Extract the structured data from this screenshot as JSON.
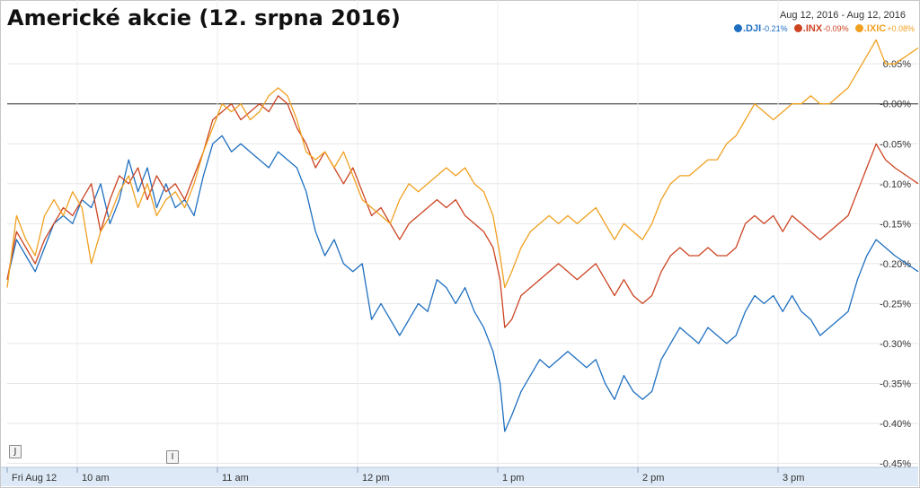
{
  "title": "Americké akcie (12. srpna 2016)",
  "date_range": "Aug 12, 2016  -  Aug 12, 2016",
  "legend": [
    {
      "name": ".DJI",
      "change": "-0.21%",
      "color": "#1e6fc0"
    },
    {
      "name": ".INX",
      "change": "-0.09%",
      "color": "#cc4422"
    },
    {
      "name": ".IXIC",
      "change": "+0.08%",
      "color": "#f0a020"
    }
  ],
  "markers": [
    {
      "label": "J"
    },
    {
      "label": "I"
    }
  ],
  "chart_data": {
    "type": "line",
    "x_ticks": [
      "Fri Aug 12",
      "10 am",
      "11 am",
      "12 pm",
      "1 pm",
      "2 pm",
      "3 pm"
    ],
    "x_tick_minutes": [
      0,
      30,
      90,
      150,
      210,
      270,
      330
    ],
    "x_range_minutes": [
      0,
      390
    ],
    "y_ticks": [
      0.05,
      0,
      -0.05,
      -0.1,
      -0.15,
      -0.2,
      -0.25,
      -0.3,
      -0.35,
      -0.4,
      -0.45
    ],
    "y_tick_labels": [
      "0.05%",
      "-0.00%",
      "-0.05%",
      "-0.10%",
      "-0.15%",
      "-0.20%",
      "-0.25%",
      "-0.30%",
      "-0.35%",
      "-0.40%",
      "-0.45%"
    ],
    "ylim": [
      -0.455,
      0.085
    ],
    "baseline": 0,
    "grid": true,
    "series": [
      {
        "name": ".DJI",
        "color": "#1e6fc0",
        "points": [
          [
            0,
            -0.22
          ],
          [
            4,
            -0.17
          ],
          [
            8,
            -0.19
          ],
          [
            12,
            -0.21
          ],
          [
            16,
            -0.18
          ],
          [
            20,
            -0.15
          ],
          [
            24,
            -0.14
          ],
          [
            28,
            -0.15
          ],
          [
            32,
            -0.12
          ],
          [
            36,
            -0.13
          ],
          [
            40,
            -0.1
          ],
          [
            44,
            -0.15
          ],
          [
            48,
            -0.12
          ],
          [
            52,
            -0.07
          ],
          [
            56,
            -0.11
          ],
          [
            60,
            -0.08
          ],
          [
            64,
            -0.13
          ],
          [
            68,
            -0.1
          ],
          [
            72,
            -0.13
          ],
          [
            76,
            -0.12
          ],
          [
            80,
            -0.14
          ],
          [
            84,
            -0.09
          ],
          [
            88,
            -0.05
          ],
          [
            92,
            -0.04
          ],
          [
            96,
            -0.06
          ],
          [
            100,
            -0.05
          ],
          [
            104,
            -0.06
          ],
          [
            108,
            -0.07
          ],
          [
            112,
            -0.08
          ],
          [
            116,
            -0.06
          ],
          [
            120,
            -0.07
          ],
          [
            124,
            -0.08
          ],
          [
            128,
            -0.11
          ],
          [
            132,
            -0.16
          ],
          [
            136,
            -0.19
          ],
          [
            140,
            -0.17
          ],
          [
            144,
            -0.2
          ],
          [
            148,
            -0.21
          ],
          [
            152,
            -0.2
          ],
          [
            156,
            -0.27
          ],
          [
            160,
            -0.25
          ],
          [
            164,
            -0.27
          ],
          [
            168,
            -0.29
          ],
          [
            172,
            -0.27
          ],
          [
            176,
            -0.25
          ],
          [
            180,
            -0.26
          ],
          [
            184,
            -0.22
          ],
          [
            188,
            -0.23
          ],
          [
            192,
            -0.25
          ],
          [
            196,
            -0.23
          ],
          [
            200,
            -0.26
          ],
          [
            204,
            -0.28
          ],
          [
            208,
            -0.31
          ],
          [
            211,
            -0.35
          ],
          [
            213,
            -0.41
          ],
          [
            216,
            -0.39
          ],
          [
            220,
            -0.36
          ],
          [
            224,
            -0.34
          ],
          [
            228,
            -0.32
          ],
          [
            232,
            -0.33
          ],
          [
            236,
            -0.32
          ],
          [
            240,
            -0.31
          ],
          [
            244,
            -0.32
          ],
          [
            248,
            -0.33
          ],
          [
            252,
            -0.32
          ],
          [
            256,
            -0.35
          ],
          [
            260,
            -0.37
          ],
          [
            264,
            -0.34
          ],
          [
            268,
            -0.36
          ],
          [
            272,
            -0.37
          ],
          [
            276,
            -0.36
          ],
          [
            280,
            -0.32
          ],
          [
            284,
            -0.3
          ],
          [
            288,
            -0.28
          ],
          [
            292,
            -0.29
          ],
          [
            296,
            -0.3
          ],
          [
            300,
            -0.28
          ],
          [
            304,
            -0.29
          ],
          [
            308,
            -0.3
          ],
          [
            312,
            -0.29
          ],
          [
            316,
            -0.26
          ],
          [
            320,
            -0.24
          ],
          [
            324,
            -0.25
          ],
          [
            328,
            -0.24
          ],
          [
            332,
            -0.26
          ],
          [
            336,
            -0.24
          ],
          [
            340,
            -0.26
          ],
          [
            344,
            -0.27
          ],
          [
            348,
            -0.29
          ],
          [
            352,
            -0.28
          ],
          [
            356,
            -0.27
          ],
          [
            360,
            -0.26
          ],
          [
            364,
            -0.22
          ],
          [
            368,
            -0.19
          ],
          [
            372,
            -0.17
          ],
          [
            376,
            -0.18
          ],
          [
            380,
            -0.19
          ],
          [
            385,
            -0.2
          ],
          [
            390,
            -0.21
          ]
        ]
      },
      {
        "name": ".INX",
        "color": "#cc4422",
        "points": [
          [
            0,
            -0.22
          ],
          [
            4,
            -0.16
          ],
          [
            8,
            -0.18
          ],
          [
            12,
            -0.2
          ],
          [
            16,
            -0.17
          ],
          [
            20,
            -0.15
          ],
          [
            24,
            -0.13
          ],
          [
            28,
            -0.14
          ],
          [
            32,
            -0.12
          ],
          [
            36,
            -0.1
          ],
          [
            40,
            -0.16
          ],
          [
            44,
            -0.12
          ],
          [
            48,
            -0.09
          ],
          [
            52,
            -0.1
          ],
          [
            56,
            -0.08
          ],
          [
            60,
            -0.12
          ],
          [
            64,
            -0.09
          ],
          [
            68,
            -0.11
          ],
          [
            72,
            -0.1
          ],
          [
            76,
            -0.12
          ],
          [
            80,
            -0.09
          ],
          [
            84,
            -0.06
          ],
          [
            88,
            -0.02
          ],
          [
            92,
            -0.01
          ],
          [
            96,
            0.0
          ],
          [
            100,
            -0.02
          ],
          [
            104,
            -0.01
          ],
          [
            108,
            0.0
          ],
          [
            112,
            -0.01
          ],
          [
            116,
            0.01
          ],
          [
            120,
            0.0
          ],
          [
            124,
            -0.03
          ],
          [
            128,
            -0.05
          ],
          [
            132,
            -0.08
          ],
          [
            136,
            -0.06
          ],
          [
            140,
            -0.08
          ],
          [
            144,
            -0.1
          ],
          [
            148,
            -0.08
          ],
          [
            152,
            -0.11
          ],
          [
            156,
            -0.14
          ],
          [
            160,
            -0.13
          ],
          [
            164,
            -0.15
          ],
          [
            168,
            -0.17
          ],
          [
            172,
            -0.15
          ],
          [
            176,
            -0.14
          ],
          [
            180,
            -0.13
          ],
          [
            184,
            -0.12
          ],
          [
            188,
            -0.13
          ],
          [
            192,
            -0.12
          ],
          [
            196,
            -0.14
          ],
          [
            200,
            -0.15
          ],
          [
            204,
            -0.16
          ],
          [
            208,
            -0.18
          ],
          [
            211,
            -0.22
          ],
          [
            213,
            -0.28
          ],
          [
            216,
            -0.27
          ],
          [
            220,
            -0.24
          ],
          [
            224,
            -0.23
          ],
          [
            228,
            -0.22
          ],
          [
            232,
            -0.21
          ],
          [
            236,
            -0.2
          ],
          [
            240,
            -0.21
          ],
          [
            244,
            -0.22
          ],
          [
            248,
            -0.21
          ],
          [
            252,
            -0.2
          ],
          [
            256,
            -0.22
          ],
          [
            260,
            -0.24
          ],
          [
            264,
            -0.22
          ],
          [
            268,
            -0.24
          ],
          [
            272,
            -0.25
          ],
          [
            276,
            -0.24
          ],
          [
            280,
            -0.21
          ],
          [
            284,
            -0.19
          ],
          [
            288,
            -0.18
          ],
          [
            292,
            -0.19
          ],
          [
            296,
            -0.19
          ],
          [
            300,
            -0.18
          ],
          [
            304,
            -0.19
          ],
          [
            308,
            -0.19
          ],
          [
            312,
            -0.18
          ],
          [
            316,
            -0.15
          ],
          [
            320,
            -0.14
          ],
          [
            324,
            -0.15
          ],
          [
            328,
            -0.14
          ],
          [
            332,
            -0.16
          ],
          [
            336,
            -0.14
          ],
          [
            340,
            -0.15
          ],
          [
            344,
            -0.16
          ],
          [
            348,
            -0.17
          ],
          [
            352,
            -0.16
          ],
          [
            356,
            -0.15
          ],
          [
            360,
            -0.14
          ],
          [
            364,
            -0.11
          ],
          [
            368,
            -0.08
          ],
          [
            372,
            -0.05
          ],
          [
            376,
            -0.07
          ],
          [
            380,
            -0.08
          ],
          [
            385,
            -0.09
          ],
          [
            390,
            -0.1
          ]
        ]
      },
      {
        "name": ".IXIC",
        "color": "#f0a020",
        "points": [
          [
            0,
            -0.23
          ],
          [
            4,
            -0.14
          ],
          [
            8,
            -0.17
          ],
          [
            12,
            -0.19
          ],
          [
            16,
            -0.14
          ],
          [
            20,
            -0.12
          ],
          [
            24,
            -0.14
          ],
          [
            28,
            -0.11
          ],
          [
            32,
            -0.13
          ],
          [
            36,
            -0.2
          ],
          [
            40,
            -0.16
          ],
          [
            44,
            -0.14
          ],
          [
            48,
            -0.11
          ],
          [
            52,
            -0.09
          ],
          [
            56,
            -0.13
          ],
          [
            60,
            -0.1
          ],
          [
            64,
            -0.14
          ],
          [
            68,
            -0.12
          ],
          [
            72,
            -0.11
          ],
          [
            76,
            -0.13
          ],
          [
            80,
            -0.1
          ],
          [
            84,
            -0.06
          ],
          [
            88,
            -0.03
          ],
          [
            92,
            0.0
          ],
          [
            96,
            -0.01
          ],
          [
            100,
            0.0
          ],
          [
            104,
            -0.02
          ],
          [
            108,
            -0.01
          ],
          [
            112,
            0.01
          ],
          [
            116,
            0.02
          ],
          [
            120,
            0.01
          ],
          [
            124,
            -0.02
          ],
          [
            128,
            -0.06
          ],
          [
            132,
            -0.07
          ],
          [
            136,
            -0.06
          ],
          [
            140,
            -0.08
          ],
          [
            144,
            -0.06
          ],
          [
            148,
            -0.09
          ],
          [
            152,
            -0.12
          ],
          [
            156,
            -0.13
          ],
          [
            160,
            -0.14
          ],
          [
            164,
            -0.15
          ],
          [
            168,
            -0.12
          ],
          [
            172,
            -0.1
          ],
          [
            176,
            -0.11
          ],
          [
            180,
            -0.1
          ],
          [
            184,
            -0.09
          ],
          [
            188,
            -0.08
          ],
          [
            192,
            -0.09
          ],
          [
            196,
            -0.08
          ],
          [
            200,
            -0.1
          ],
          [
            204,
            -0.11
          ],
          [
            208,
            -0.14
          ],
          [
            211,
            -0.19
          ],
          [
            213,
            -0.23
          ],
          [
            216,
            -0.21
          ],
          [
            220,
            -0.18
          ],
          [
            224,
            -0.16
          ],
          [
            228,
            -0.15
          ],
          [
            232,
            -0.14
          ],
          [
            236,
            -0.15
          ],
          [
            240,
            -0.14
          ],
          [
            244,
            -0.15
          ],
          [
            248,
            -0.14
          ],
          [
            252,
            -0.13
          ],
          [
            256,
            -0.15
          ],
          [
            260,
            -0.17
          ],
          [
            264,
            -0.15
          ],
          [
            268,
            -0.16
          ],
          [
            272,
            -0.17
          ],
          [
            276,
            -0.15
          ],
          [
            280,
            -0.12
          ],
          [
            284,
            -0.1
          ],
          [
            288,
            -0.09
          ],
          [
            292,
            -0.09
          ],
          [
            296,
            -0.08
          ],
          [
            300,
            -0.07
          ],
          [
            304,
            -0.07
          ],
          [
            308,
            -0.05
          ],
          [
            312,
            -0.04
          ],
          [
            316,
            -0.02
          ],
          [
            320,
            0.0
          ],
          [
            324,
            -0.01
          ],
          [
            328,
            -0.02
          ],
          [
            332,
            -0.01
          ],
          [
            336,
            0.0
          ],
          [
            340,
            0.0
          ],
          [
            344,
            0.01
          ],
          [
            348,
            0.0
          ],
          [
            352,
            0.0
          ],
          [
            356,
            0.01
          ],
          [
            360,
            0.02
          ],
          [
            364,
            0.04
          ],
          [
            368,
            0.06
          ],
          [
            372,
            0.08
          ],
          [
            376,
            0.05
          ],
          [
            380,
            0.05
          ],
          [
            385,
            0.06
          ],
          [
            390,
            0.07
          ]
        ]
      }
    ]
  }
}
